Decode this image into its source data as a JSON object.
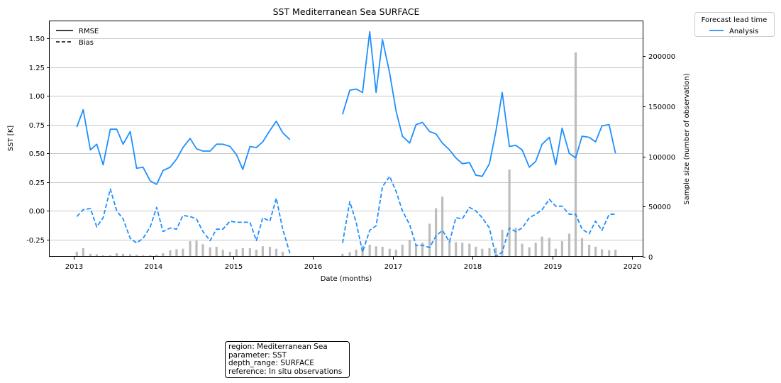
{
  "chart_data": {
    "type": "line",
    "title": "SST Mediterranean Sea SURFACE",
    "xlabel": "Date (months)",
    "ylabel": "SST [K]",
    "y2label": "Sample size (number of observation)",
    "xlim": [
      2012.7,
      2020.13
    ],
    "ylim": [
      -0.4,
      1.65
    ],
    "y2lim": [
      0,
      235000
    ],
    "x_ticks": [
      2013,
      2014,
      2015,
      2016,
      2017,
      2018,
      2019,
      2020
    ],
    "y_ticks": [
      "-0.25",
      "0.00",
      "0.25",
      "0.50",
      "0.75",
      "1.00",
      "1.25",
      "1.50"
    ],
    "y2_ticks": [
      "0",
      "50000",
      "100000",
      "150000",
      "200000"
    ],
    "grid": "horizontal",
    "style_legend": {
      "entries": [
        {
          "label": "RMSE",
          "dash": "solid"
        },
        {
          "label": "Bias",
          "dash": "dashed"
        }
      ],
      "placement": "top-left"
    },
    "legend": {
      "title": "Forecast lead time",
      "entries": [
        {
          "label": "Analysis",
          "color": "#1e8fff"
        }
      ],
      "placement": "outside-top-right"
    },
    "colors": {
      "series": "#1e8fff",
      "bars": "#bdbdbd",
      "grid": "#c8c8c8"
    },
    "series": [
      {
        "name": "Analysis",
        "metric": "RMSE",
        "x": [
          2013.04,
          2013.12,
          2013.21,
          2013.29,
          2013.37,
          2013.46,
          2013.54,
          2013.62,
          2013.71,
          2013.79,
          2013.87,
          2013.96,
          2014.04,
          2014.12,
          2014.21,
          2014.29,
          2014.37,
          2014.46,
          2014.54,
          2014.62,
          2014.71,
          2014.79,
          2014.87,
          2014.96,
          2015.04,
          2015.12,
          2015.21,
          2015.29,
          2015.37,
          2015.46,
          2015.54,
          2015.62,
          2015.71,
          null,
          2016.37,
          2016.46,
          2016.54,
          2016.62,
          2016.71,
          2016.79,
          2016.87,
          2016.96,
          2017.04,
          2017.12,
          2017.21,
          2017.29,
          2017.37,
          2017.46,
          2017.54,
          2017.62,
          2017.71,
          2017.79,
          2017.87,
          2017.96,
          2018.04,
          2018.12,
          2018.21,
          2018.29,
          2018.37,
          2018.46,
          2018.54,
          2018.62,
          2018.71,
          2018.79,
          2018.87,
          2018.96,
          2019.04,
          2019.12,
          2019.21,
          2019.29,
          2019.37,
          2019.46,
          2019.54,
          2019.62,
          2019.71,
          2019.79
        ],
        "y": [
          0.73,
          0.88,
          0.53,
          0.58,
          0.4,
          0.71,
          0.71,
          0.58,
          0.69,
          0.37,
          0.38,
          0.26,
          0.23,
          0.35,
          0.38,
          0.45,
          0.55,
          0.63,
          0.54,
          0.52,
          0.52,
          0.58,
          0.58,
          0.56,
          0.49,
          0.36,
          0.56,
          0.55,
          0.6,
          0.7,
          0.78,
          0.68,
          0.62,
          null,
          0.84,
          1.05,
          1.06,
          1.03,
          1.56,
          1.03,
          1.49,
          1.2,
          0.87,
          0.65,
          0.59,
          0.75,
          0.77,
          0.69,
          0.67,
          0.59,
          0.53,
          0.46,
          0.41,
          0.42,
          0.31,
          0.3,
          0.41,
          0.69,
          1.03,
          0.56,
          0.57,
          0.53,
          0.38,
          0.43,
          0.58,
          0.64,
          0.4,
          0.72,
          0.5,
          0.46,
          0.65,
          0.64,
          0.6,
          0.74,
          0.75,
          0.5
        ]
      },
      {
        "name": "Analysis",
        "metric": "Bias",
        "x": [
          2013.04,
          2013.12,
          2013.21,
          2013.29,
          2013.37,
          2013.46,
          2013.54,
          2013.62,
          2013.71,
          2013.79,
          2013.87,
          2013.96,
          2014.04,
          2014.12,
          2014.21,
          2014.29,
          2014.37,
          2014.46,
          2014.54,
          2014.62,
          2014.71,
          2014.79,
          2014.87,
          2014.96,
          2015.04,
          2015.12,
          2015.21,
          2015.29,
          2015.37,
          2015.46,
          2015.54,
          2015.62,
          2015.71,
          null,
          2016.37,
          2016.46,
          2016.54,
          2016.62,
          2016.71,
          2016.79,
          2016.87,
          2016.96,
          2017.04,
          2017.12,
          2017.21,
          2017.29,
          2017.37,
          2017.46,
          2017.54,
          2017.62,
          2017.71,
          2017.79,
          2017.87,
          2017.96,
          2018.04,
          2018.12,
          2018.21,
          2018.29,
          2018.37,
          2018.46,
          2018.54,
          2018.62,
          2018.71,
          2018.79,
          2018.87,
          2018.96,
          2019.04,
          2019.12,
          2019.21,
          2019.29,
          2019.37,
          2019.46,
          2019.54,
          2019.62,
          2019.71,
          2019.79
        ],
        "y": [
          -0.05,
          0.01,
          0.02,
          -0.14,
          -0.06,
          0.19,
          0.0,
          -0.07,
          -0.24,
          -0.28,
          -0.24,
          -0.14,
          0.03,
          -0.18,
          -0.15,
          -0.16,
          -0.04,
          -0.05,
          -0.07,
          -0.18,
          -0.26,
          -0.16,
          -0.16,
          -0.09,
          -0.1,
          -0.1,
          -0.1,
          -0.26,
          -0.06,
          -0.09,
          0.11,
          -0.16,
          -0.37,
          null,
          -0.28,
          0.08,
          -0.1,
          -0.36,
          -0.17,
          -0.13,
          0.21,
          0.3,
          0.17,
          0.0,
          -0.12,
          -0.3,
          -0.3,
          -0.32,
          -0.22,
          -0.17,
          -0.27,
          -0.06,
          -0.07,
          0.03,
          0.0,
          -0.06,
          -0.15,
          -0.4,
          -0.36,
          -0.15,
          -0.18,
          -0.15,
          -0.06,
          -0.03,
          0.01,
          0.1,
          0.04,
          0.04,
          -0.03,
          -0.03,
          -0.16,
          -0.2,
          -0.09,
          -0.17,
          -0.03,
          -0.03
        ]
      }
    ],
    "sample_size": {
      "x": [
        2013.04,
        2013.12,
        2013.21,
        2013.29,
        2013.37,
        2013.46,
        2013.54,
        2013.62,
        2013.71,
        2013.79,
        2013.87,
        2013.96,
        2014.04,
        2014.12,
        2014.21,
        2014.29,
        2014.37,
        2014.46,
        2014.54,
        2014.62,
        2014.71,
        2014.79,
        2014.87,
        2014.96,
        2015.04,
        2015.12,
        2015.21,
        2015.29,
        2015.37,
        2015.46,
        2015.54,
        2015.62,
        2015.71,
        2016.37,
        2016.46,
        2016.54,
        2016.62,
        2016.71,
        2016.79,
        2016.87,
        2016.96,
        2017.04,
        2017.12,
        2017.21,
        2017.29,
        2017.37,
        2017.46,
        2017.54,
        2017.62,
        2017.71,
        2017.79,
        2017.87,
        2017.96,
        2018.04,
        2018.12,
        2018.21,
        2018.29,
        2018.37,
        2018.46,
        2018.54,
        2018.62,
        2018.71,
        2018.79,
        2018.87,
        2018.96,
        2019.04,
        2019.12,
        2019.21,
        2019.29,
        2019.37,
        2019.46,
        2019.54,
        2019.62,
        2019.71,
        2019.79
      ],
      "values": [
        5000,
        8500,
        3000,
        2500,
        1500,
        1500,
        3500,
        3000,
        2500,
        2000,
        1500,
        1500,
        2000,
        3500,
        6500,
        7500,
        8000,
        15500,
        16000,
        12500,
        9500,
        10000,
        7000,
        5000,
        7500,
        8500,
        8500,
        7000,
        10500,
        10000,
        8000,
        5000,
        0,
        3000,
        4500,
        7000,
        11000,
        12000,
        10500,
        10000,
        8000,
        7000,
        12000,
        17000,
        12000,
        14000,
        33000,
        48500,
        60000,
        15500,
        14500,
        14000,
        13000,
        10000,
        8000,
        8500,
        9000,
        27000,
        87000,
        29000,
        13000,
        9500,
        14000,
        20000,
        19000,
        8000,
        15500,
        23000,
        204000,
        18500,
        12000,
        10000,
        7500,
        6500,
        7000
      ]
    },
    "info_box": [
      "region: Mediterranean Sea",
      "parameter: SST",
      "depth_range: SURFACE",
      "reference: In situ observations"
    ]
  }
}
